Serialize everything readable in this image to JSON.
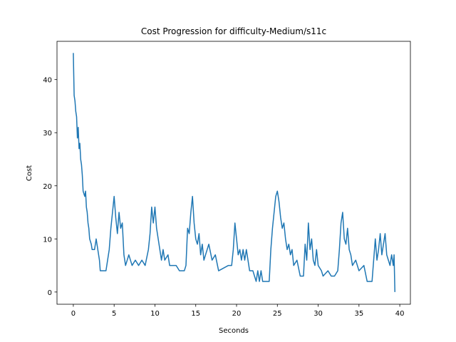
{
  "chart_data": {
    "type": "line",
    "title": "Cost Progression for difficulty-Medium/s11c",
    "x_label": "Seconds",
    "y_label": "Cost",
    "color": "#1f77b4",
    "xlim": [
      -2.0,
      41.3
    ],
    "ylim": [
      -2.3,
      47.2
    ],
    "xticks": [
      0,
      5,
      10,
      15,
      20,
      25,
      30,
      35,
      40
    ],
    "yticks": [
      0,
      10,
      20,
      30,
      40
    ],
    "x": [
      0,
      0.05,
      0.1,
      0.2,
      0.3,
      0.4,
      0.5,
      0.6,
      0.7,
      0.8,
      0.9,
      1.0,
      1.1,
      1.2,
      1.4,
      1.5,
      1.6,
      1.7,
      1.8,
      1.9,
      2.0,
      2.2,
      2.3,
      2.6,
      2.8,
      3.0,
      3.2,
      3.3,
      4.0,
      4.2,
      4.4,
      4.6,
      4.8,
      5.0,
      5.2,
      5.4,
      5.6,
      5.8,
      6.0,
      6.2,
      6.4,
      6.8,
      7.2,
      7.6,
      8.0,
      8.4,
      8.8,
      9.2,
      9.4,
      9.6,
      9.8,
      10.0,
      10.2,
      10.4,
      10.6,
      10.8,
      11.0,
      11.2,
      11.6,
      11.8,
      12.0,
      12.6,
      13.0,
      13.6,
      13.8,
      14.0,
      14.2,
      14.4,
      14.6,
      14.8,
      15.0,
      15.2,
      15.4,
      15.6,
      15.8,
      16.0,
      16.2,
      16.6,
      17.0,
      17.4,
      17.8,
      19.0,
      19.4,
      19.6,
      19.8,
      20.0,
      20.2,
      20.4,
      20.6,
      20.8,
      21.0,
      21.2,
      21.6,
      22.0,
      22.2,
      22.4,
      22.6,
      22.8,
      23.0,
      23.2,
      23.6,
      24.0,
      24.2,
      24.4,
      24.6,
      24.8,
      25.0,
      25.2,
      25.4,
      25.6,
      25.8,
      26.0,
      26.2,
      26.4,
      26.6,
      26.8,
      27.0,
      27.4,
      27.8,
      28.2,
      28.4,
      28.6,
      28.8,
      29.0,
      29.2,
      29.4,
      29.6,
      29.8,
      30.0,
      30.4,
      30.6,
      31.2,
      31.6,
      32.0,
      32.4,
      32.6,
      32.8,
      33.0,
      33.2,
      33.4,
      33.6,
      33.8,
      34.0,
      34.2,
      34.6,
      35.0,
      35.6,
      36.0,
      36.6,
      36.8,
      37.0,
      37.2,
      37.4,
      37.6,
      37.8,
      38.0,
      38.2,
      38.4,
      38.6,
      38.8,
      39.0,
      39.2,
      39.3,
      39.4
    ],
    "values": [
      45,
      41,
      37,
      36,
      34,
      33,
      29,
      31,
      27,
      28,
      25,
      24,
      22,
      19,
      18,
      19,
      16,
      15,
      13,
      12,
      10,
      9,
      8,
      8,
      10,
      8,
      6,
      4,
      4,
      6,
      8,
      12,
      15,
      18,
      14,
      11,
      15,
      12,
      13,
      7,
      5,
      7,
      5,
      6,
      5,
      6,
      5,
      8,
      11,
      16,
      13,
      16,
      12,
      10,
      8,
      6,
      8,
      6,
      7,
      5,
      5,
      5,
      4,
      4,
      5,
      12,
      11,
      15,
      18,
      13,
      10,
      9,
      11,
      7,
      9,
      6,
      7,
      9,
      6,
      7,
      4,
      5,
      5,
      8,
      13,
      10,
      7,
      8,
      6,
      8,
      6,
      8,
      4,
      4,
      3,
      2,
      4,
      2,
      4,
      2,
      2,
      2,
      8,
      12,
      15,
      18,
      19,
      17,
      14,
      12,
      13,
      10,
      8,
      9,
      7,
      8,
      5,
      6,
      3,
      3,
      9,
      6,
      13,
      8,
      10,
      6,
      5,
      8,
      5,
      4,
      3,
      4,
      3,
      3,
      4,
      8,
      13,
      15,
      10,
      9,
      12,
      8,
      7,
      5,
      6,
      4,
      5,
      2,
      2,
      6,
      10,
      6,
      8,
      11,
      7,
      9,
      11,
      7,
      6,
      5,
      7,
      5,
      7,
      0
    ]
  }
}
